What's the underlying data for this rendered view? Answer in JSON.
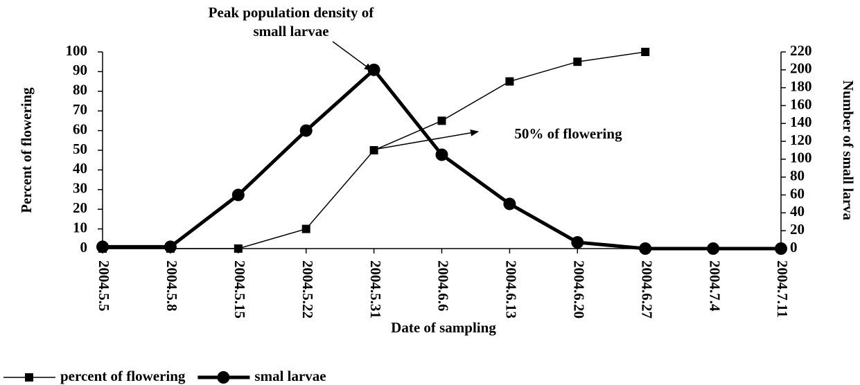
{
  "chart_data": {
    "type": "line",
    "x_label": "Date of sampling",
    "y_label": "Percent of flowering",
    "y2_label": "Number of small larva",
    "categories": [
      "2004.5.5",
      "2004.5.8",
      "2004.5.15",
      "2004.5.22",
      "2004.5.31",
      "2004.6.6",
      "2004.6.13",
      "2004.6.20",
      "2004.6.27",
      "2004.7.4",
      "2004.7.11"
    ],
    "series": [
      {
        "name": "percent of flowering",
        "color": "#000000",
        "marker": "square",
        "values": [
          0,
          0,
          0,
          10,
          50,
          65,
          85,
          95,
          100,
          null,
          null
        ]
      },
      {
        "name": "smal larvae",
        "color": "#000000",
        "marker": "circle",
        "axis": "y2",
        "values": [
          2,
          2,
          60,
          132,
          200,
          105,
          50,
          7,
          0,
          0,
          0
        ]
      }
    ],
    "ylim": [
      0,
      100
    ],
    "yticks": [
      0,
      10,
      20,
      30,
      40,
      50,
      60,
      70,
      80,
      90,
      100
    ],
    "y2lim": [
      0,
      220
    ],
    "y2ticks": [
      0,
      20,
      40,
      60,
      80,
      100,
      120,
      140,
      160,
      180,
      200,
      220
    ],
    "annotations": [
      {
        "lines": [
          "Peak population density of",
          "small larvae"
        ]
      },
      {
        "lines": [
          "50% of flowering"
        ]
      }
    ],
    "legend": "bottom-left"
  }
}
